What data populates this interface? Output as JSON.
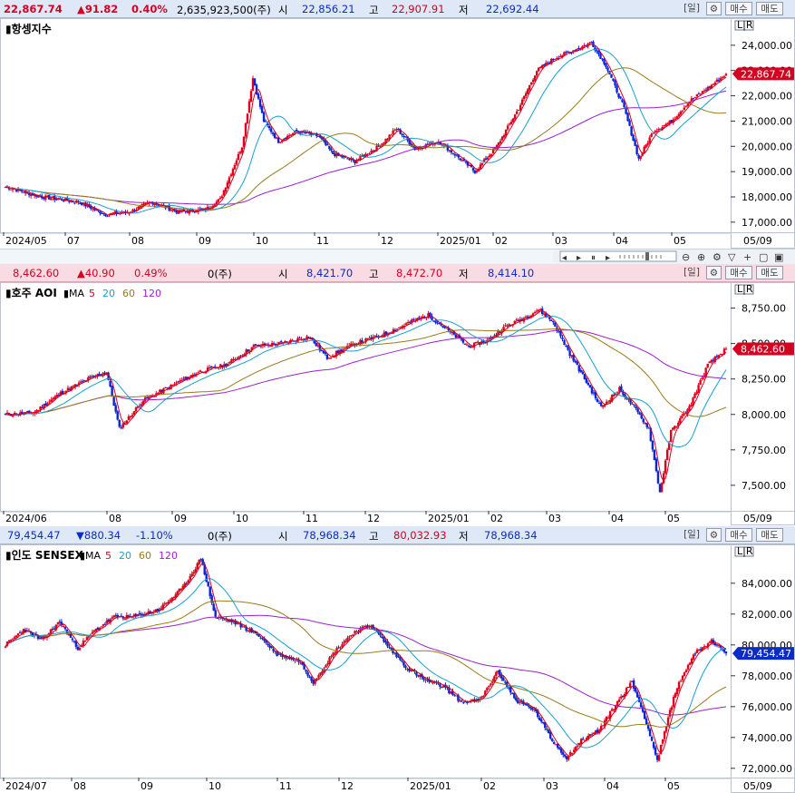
{
  "panels": [
    {
      "id": "hsi",
      "header": {
        "price": "22,867.74",
        "change": "▲91.82",
        "pct": "0.40%",
        "volume": "2,635,923,500(주)",
        "open_label": "시",
        "open": "22,856.21",
        "high_label": "고",
        "high": "22,907.91",
        "low_label": "저",
        "low": "22,692.44"
      },
      "buttons": {
        "period": "[일]",
        "gear": "⚙",
        "buy": "매수",
        "sell": "매도"
      },
      "title": "항셍지수",
      "ma_legend": [],
      "last_label": "22,867.74",
      "lr_label": "L|R"
    },
    {
      "id": "aoi",
      "header": {
        "price": "8,462.60",
        "change": "▲40.90",
        "pct": "0.49%",
        "volume": "0(주)",
        "open_label": "시",
        "open": "8,421.70",
        "high_label": "고",
        "high": "8,472.70",
        "low_label": "저",
        "low": "8,414.10"
      },
      "buttons": {
        "period": "[일]",
        "gear": "⚙",
        "buy": "매수",
        "sell": "매도"
      },
      "title": "호주 AOI",
      "ma_legend": [
        {
          "label": "MA",
          "color": "#000000"
        },
        {
          "label": "5",
          "color": "#d4001f"
        },
        {
          "label": "20",
          "color": "#17a0cf"
        },
        {
          "label": "60",
          "color": "#9a7a1a"
        },
        {
          "label": "120",
          "color": "#9b1fd0"
        }
      ],
      "last_label": "8,462.60",
      "lr_label": "L|R"
    },
    {
      "id": "sensex",
      "header": {
        "price": "79,454.47",
        "change": "▼880.34",
        "pct": "-1.10%",
        "volume": "0(주)",
        "open_label": "시",
        "open": "78,968.34",
        "high_label": "고",
        "high": "80,032.93",
        "low_label": "저",
        "low": "78,968.34"
      },
      "buttons": {
        "period": "[일]",
        "gear": "⚙",
        "buy": "매수",
        "sell": "매도"
      },
      "title": "인도 SENSEX",
      "ma_legend": [
        {
          "label": "MA",
          "color": "#000000"
        },
        {
          "label": "5",
          "color": "#d4001f"
        },
        {
          "label": "20",
          "color": "#17a0cf"
        },
        {
          "label": "60",
          "color": "#9a7a1a"
        },
        {
          "label": "120",
          "color": "#9b1fd0"
        }
      ],
      "last_label": "79,454.47",
      "lr_label": "L|R"
    }
  ],
  "toolbar_icons": [
    "left-arrow-icon",
    "play-icon",
    "pause-icon",
    "right-arrow-icon",
    "zoom-out-icon",
    "zoom-in-icon",
    "settings-icon",
    "filter-icon",
    "add-icon",
    "print-icon",
    "save-icon"
  ],
  "chart_data": [
    {
      "type": "candlestick",
      "title": "항셍지수",
      "x_ticks": [
        "2024/05",
        "07",
        "08",
        "09",
        "10",
        "11",
        "12",
        "2025/01",
        "02",
        "03",
        "04",
        "05",
        "05/09"
      ],
      "y_ticks": [
        "24,000.00",
        "23,000.00",
        "22,000.00",
        "21,000.00",
        "20,000.00",
        "19,000.00",
        "18,000.00",
        "17,000.00"
      ],
      "ylim": [
        16600,
        25000
      ],
      "last": 22867.74,
      "anchors": [
        [
          0,
          18400
        ],
        [
          20,
          18000
        ],
        [
          40,
          17800
        ],
        [
          55,
          17300
        ],
        [
          68,
          17400
        ],
        [
          80,
          17800
        ],
        [
          95,
          17400
        ],
        [
          110,
          17500
        ],
        [
          118,
          17900
        ],
        [
          130,
          20000
        ],
        [
          136,
          22700
        ],
        [
          142,
          21000
        ],
        [
          150,
          20200
        ],
        [
          160,
          20600
        ],
        [
          172,
          20400
        ],
        [
          180,
          19700
        ],
        [
          192,
          19400
        ],
        [
          205,
          20000
        ],
        [
          215,
          20700
        ],
        [
          225,
          19900
        ],
        [
          238,
          20200
        ],
        [
          250,
          19500
        ],
        [
          258,
          19000
        ],
        [
          270,
          20000
        ],
        [
          282,
          21500
        ],
        [
          292,
          23000
        ],
        [
          302,
          23500
        ],
        [
          312,
          23800
        ],
        [
          322,
          24100
        ],
        [
          330,
          23200
        ],
        [
          340,
          21500
        ],
        [
          348,
          19500
        ],
        [
          356,
          20600
        ],
        [
          366,
          21000
        ],
        [
          376,
          21800
        ],
        [
          386,
          22300
        ],
        [
          396,
          22867
        ]
      ],
      "ma_colors": {
        "ma5": "#d4001f",
        "ma20": "#17a0cf",
        "ma60": "#9a7a1a",
        "ma120": "#9b1fd0"
      }
    },
    {
      "type": "candlestick",
      "title": "호주 AOI",
      "x_ticks": [
        "2024/06",
        "08",
        "09",
        "10",
        "11",
        "12",
        "2025/01",
        "02",
        "03",
        "04",
        "05",
        "05/09"
      ],
      "y_ticks": [
        "8,750.00",
        "8,500.00",
        "8,250.00",
        "8,000.00",
        "7,750.00",
        "7,500.00"
      ],
      "ylim": [
        7320,
        8920
      ],
      "last": 8462.6,
      "anchors": [
        [
          0,
          8000
        ],
        [
          15,
          8010
        ],
        [
          30,
          8150
        ],
        [
          45,
          8250
        ],
        [
          55,
          8300
        ],
        [
          62,
          7900
        ],
        [
          75,
          8100
        ],
        [
          90,
          8200
        ],
        [
          105,
          8300
        ],
        [
          120,
          8350
        ],
        [
          135,
          8480
        ],
        [
          150,
          8500
        ],
        [
          165,
          8550
        ],
        [
          175,
          8400
        ],
        [
          190,
          8500
        ],
        [
          205,
          8560
        ],
        [
          220,
          8650
        ],
        [
          230,
          8700
        ],
        [
          240,
          8600
        ],
        [
          252,
          8480
        ],
        [
          262,
          8520
        ],
        [
          272,
          8620
        ],
        [
          282,
          8680
        ],
        [
          290,
          8740
        ],
        [
          298,
          8650
        ],
        [
          306,
          8450
        ],
        [
          316,
          8230
        ],
        [
          324,
          8050
        ],
        [
          334,
          8180
        ],
        [
          342,
          8050
        ],
        [
          350,
          7900
        ],
        [
          356,
          7450
        ],
        [
          362,
          7880
        ],
        [
          372,
          8050
        ],
        [
          382,
          8350
        ],
        [
          392,
          8462
        ]
      ],
      "ma_colors": {
        "ma5": "#d4001f",
        "ma20": "#17a0cf",
        "ma60": "#9a7a1a",
        "ma120": "#9b1fd0"
      }
    },
    {
      "type": "candlestick",
      "title": "인도 SENSEX",
      "x_ticks": [
        "2024/07",
        "08",
        "09",
        "10",
        "11",
        "12",
        "2025/01",
        "02",
        "03",
        "04",
        "05",
        "05/09"
      ],
      "y_ticks": [
        "84,000.00",
        "82,000.00",
        "80,000.00",
        "78,000.00",
        "76,000.00",
        "74,000.00",
        "72,000.00"
      ],
      "ylim": [
        71400,
        86400
      ],
      "last": 79454.47,
      "anchors": [
        [
          0,
          80000
        ],
        [
          10,
          81000
        ],
        [
          20,
          80300
        ],
        [
          30,
          81500
        ],
        [
          40,
          79800
        ],
        [
          50,
          81000
        ],
        [
          60,
          81800
        ],
        [
          70,
          81800
        ],
        [
          85,
          82300
        ],
        [
          98,
          83700
        ],
        [
          108,
          85600
        ],
        [
          116,
          81800
        ],
        [
          126,
          81500
        ],
        [
          140,
          80600
        ],
        [
          150,
          79400
        ],
        [
          162,
          79000
        ],
        [
          170,
          77600
        ],
        [
          182,
          79600
        ],
        [
          192,
          80800
        ],
        [
          202,
          81300
        ],
        [
          212,
          79800
        ],
        [
          222,
          78500
        ],
        [
          232,
          77700
        ],
        [
          242,
          77300
        ],
        [
          252,
          76300
        ],
        [
          262,
          76400
        ],
        [
          272,
          78300
        ],
        [
          282,
          76400
        ],
        [
          292,
          75800
        ],
        [
          302,
          73800
        ],
        [
          310,
          72700
        ],
        [
          318,
          73800
        ],
        [
          328,
          74500
        ],
        [
          338,
          76300
        ],
        [
          346,
          77600
        ],
        [
          354,
          75000
        ],
        [
          360,
          72500
        ],
        [
          370,
          77000
        ],
        [
          380,
          79400
        ],
        [
          390,
          80300
        ],
        [
          398,
          79454
        ]
      ],
      "ma_colors": {
        "ma5": "#d4001f",
        "ma20": "#17a0cf",
        "ma60": "#9a7a1a",
        "ma120": "#9b1fd0"
      }
    }
  ]
}
